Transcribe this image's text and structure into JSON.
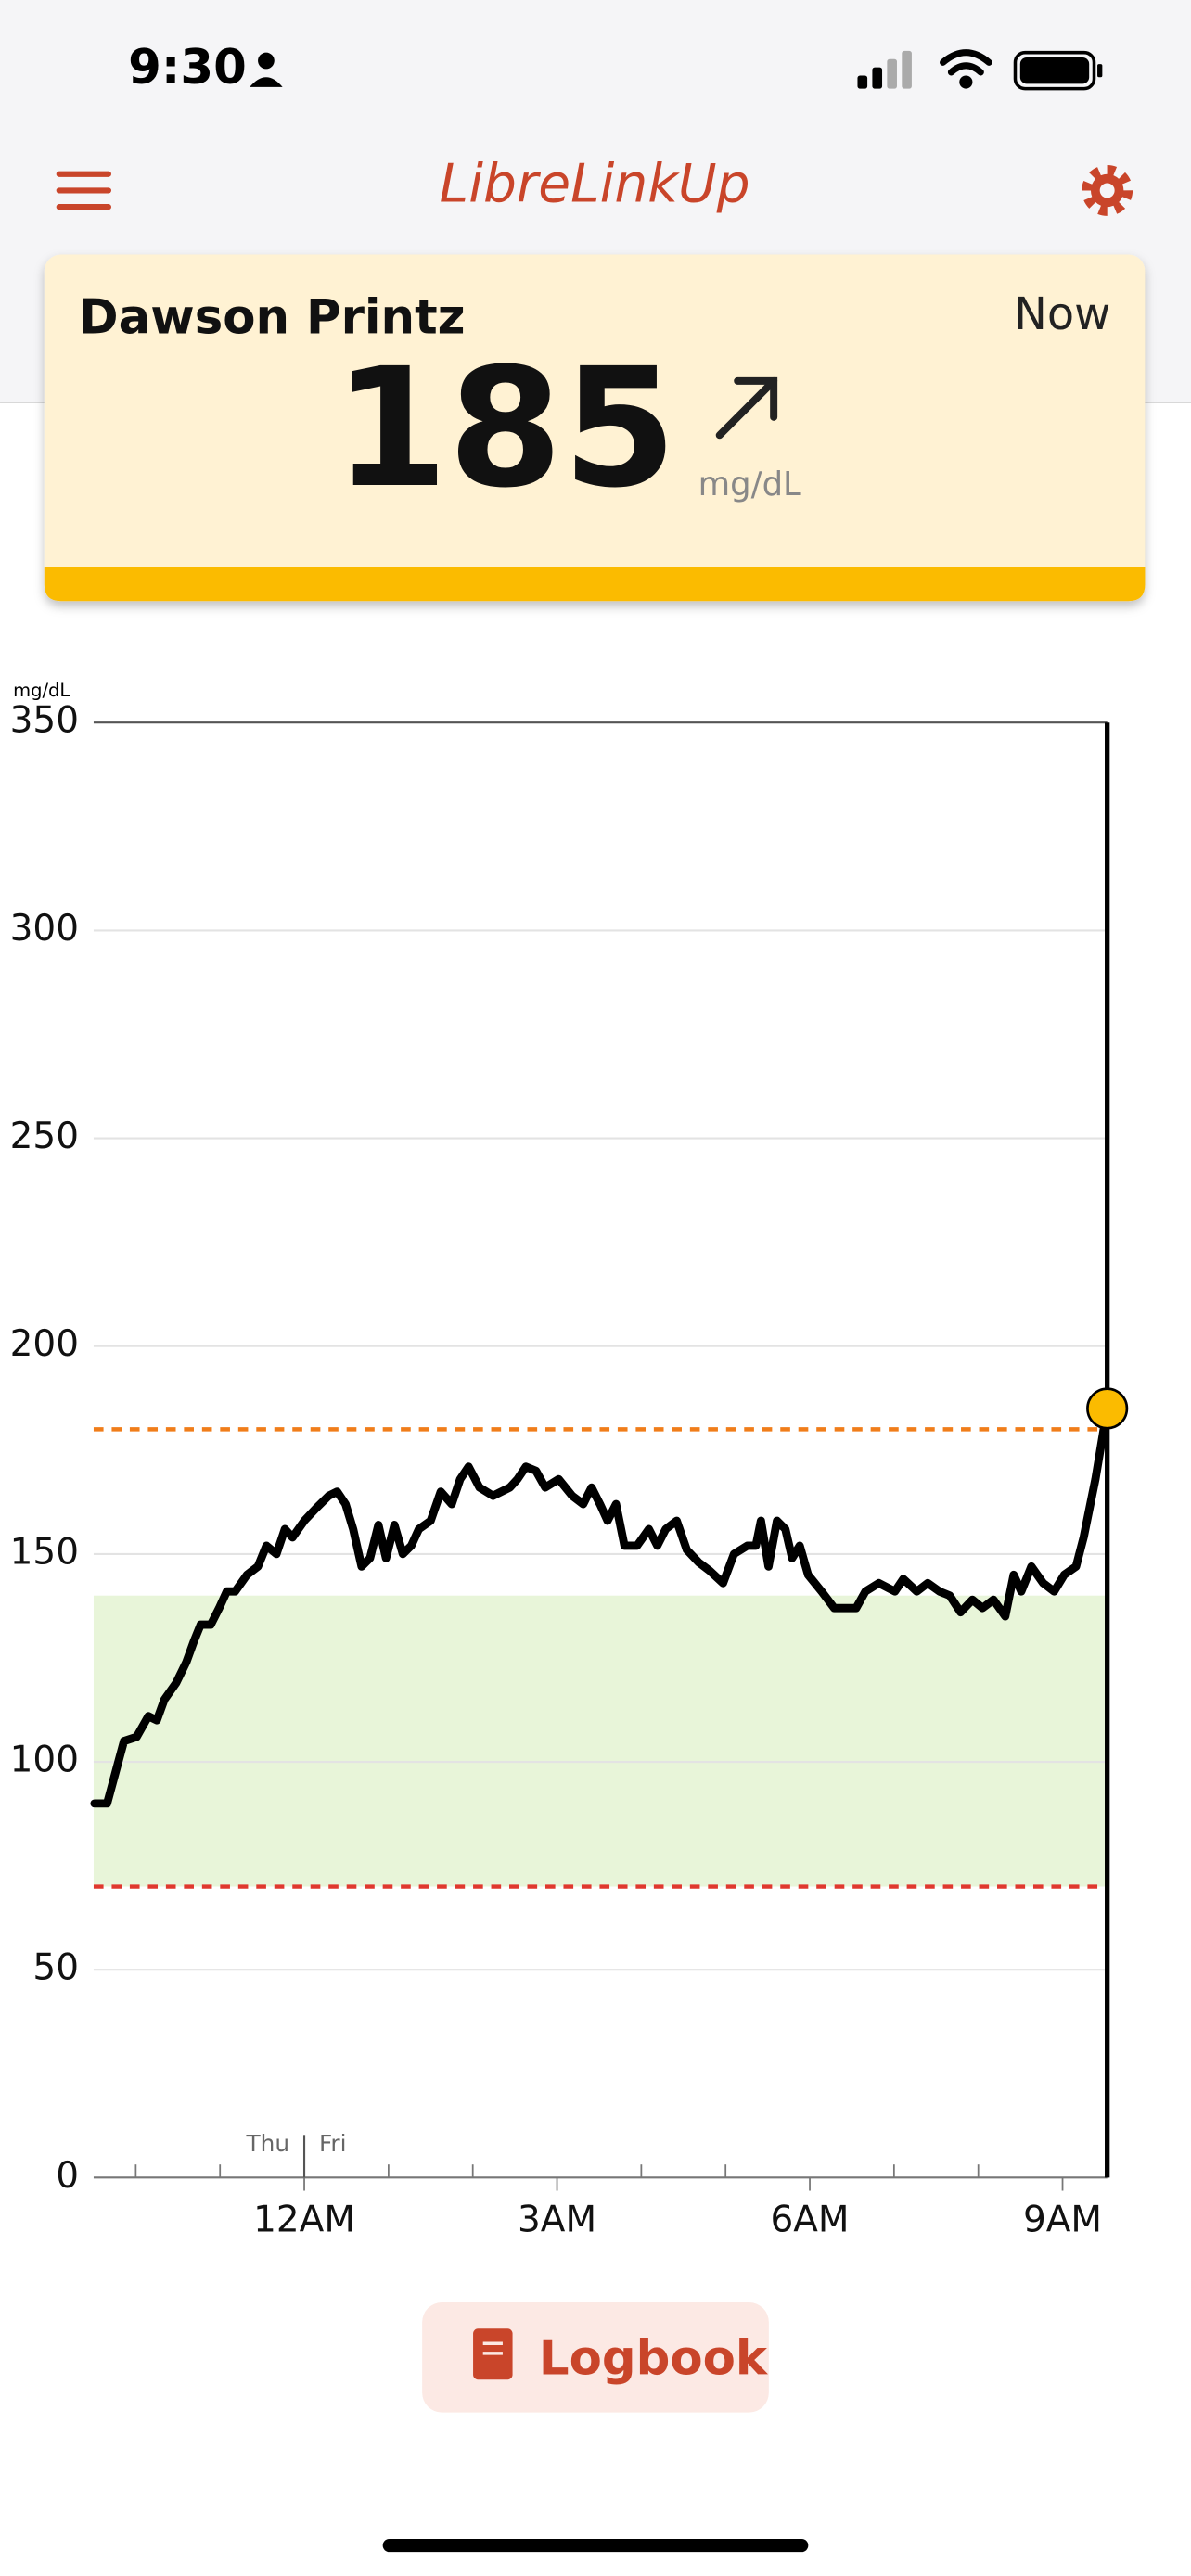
{
  "status_bar": {
    "time": "9:30"
  },
  "header": {
    "title": "LibreLinkUp"
  },
  "card": {
    "name": "Dawson Printz",
    "time": "Now",
    "value": 185,
    "unit": "mg/dL"
  },
  "chart_data": {
    "type": "line",
    "y_unit": "mg/dL",
    "x": [
      -2.49,
      -2.34,
      -2.14,
      -1.99,
      -1.85,
      -1.75,
      -1.66,
      -1.52,
      -1.4,
      -1.31,
      -1.23,
      -1.11,
      -1.01,
      -0.92,
      -0.82,
      -0.68,
      -0.55,
      -0.45,
      -0.33,
      -0.23,
      -0.14,
      0,
      0.14,
      0.29,
      0.39,
      0.49,
      0.58,
      0.68,
      0.78,
      0.88,
      0.97,
      1.07,
      1.17,
      1.27,
      1.36,
      1.5,
      1.62,
      1.75,
      1.85,
      1.95,
      2.08,
      2.24,
      2.44,
      2.53,
      2.63,
      2.75,
      2.86,
      3.02,
      3.18,
      3.31,
      3.41,
      3.51,
      3.6,
      3.7,
      3.8,
      3.95,
      4.09,
      4.19,
      4.29,
      4.42,
      4.54,
      4.68,
      4.81,
      4.97,
      5.1,
      5.26,
      5.36,
      5.42,
      5.51,
      5.61,
      5.71,
      5.79,
      5.88,
      5.98,
      6.14,
      6.29,
      6.43,
      6.55,
      6.66,
      6.82,
      7.01,
      7.11,
      7.27,
      7.4,
      7.54,
      7.66,
      7.79,
      7.93,
      8.05,
      8.18,
      8.32,
      8.42,
      8.51,
      8.63,
      8.77,
      8.9,
      9.02,
      9.16,
      9.25,
      9.39,
      9.53
    ],
    "series": [
      {
        "color": "#000000",
        "values": [
          90,
          90,
          105,
          106,
          111,
          110,
          115,
          119,
          124,
          129,
          133,
          133,
          137,
          141,
          141,
          145,
          147,
          152,
          150,
          156,
          154,
          158,
          161,
          164,
          165,
          162,
          156,
          147,
          149,
          157,
          149,
          157,
          150,
          152,
          156,
          158,
          165,
          162,
          168,
          171,
          166,
          164,
          166,
          168,
          171,
          170,
          166,
          168,
          164,
          162,
          166,
          162,
          158,
          162,
          152,
          152,
          156,
          152,
          156,
          158,
          151,
          148,
          146,
          143,
          150,
          152,
          152,
          158,
          147,
          158,
          156,
          149,
          152,
          145,
          141,
          137,
          137,
          137,
          141,
          143,
          141,
          144,
          141,
          143,
          141,
          140,
          136,
          139,
          137,
          139,
          135,
          145,
          141,
          147,
          143,
          141,
          145,
          147,
          154,
          168,
          185
        ]
      }
    ],
    "xlim": [
      -2.5,
      9.53
    ],
    "ylim": [
      0,
      350
    ],
    "yticks": [
      0,
      50,
      100,
      150,
      200,
      250,
      300,
      350
    ],
    "xticks": [
      {
        "value": 0,
        "label": "12AM"
      },
      {
        "value": 3,
        "label": "3AM"
      },
      {
        "value": 6,
        "label": "6AM"
      },
      {
        "value": 9,
        "label": "9AM"
      }
    ],
    "minor_xticks": [
      -2,
      -1,
      1,
      2,
      4,
      5,
      7,
      8
    ],
    "day_divider": 0,
    "day_labels": [
      "Thu",
      "Fri"
    ],
    "target_range": [
      70,
      140
    ],
    "target_color": "#e8f5d9",
    "high_threshold": 180,
    "high_color": "#f07d1a",
    "low_threshold": 70,
    "low_color": "#e0382e",
    "marker_color": "#fbbb00",
    "grid": true
  },
  "logbook": {
    "label": "Logbook"
  }
}
